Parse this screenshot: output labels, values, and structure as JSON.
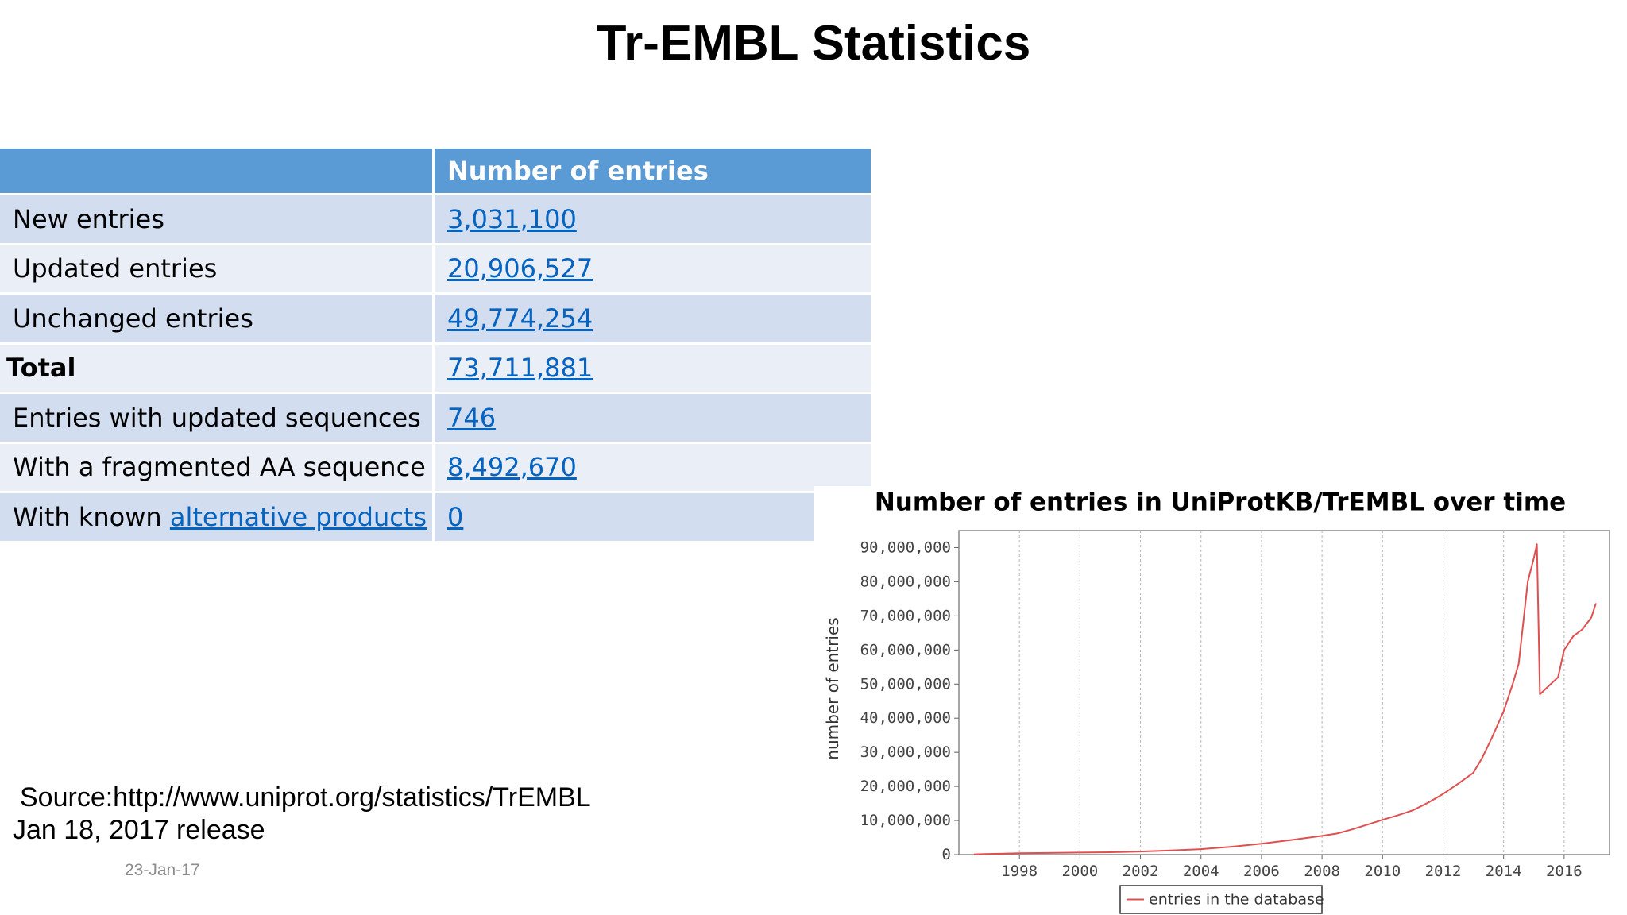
{
  "slide": {
    "title": "Tr-EMBL Statistics",
    "date": "23-Jan-17"
  },
  "table": {
    "header": {
      "col1": "",
      "col2": "Number of entries"
    },
    "rows": [
      {
        "label": "New entries",
        "value": "3,031,100"
      },
      {
        "label": "Updated entries",
        "value": "20,906,527"
      },
      {
        "label": "Unchanged entries",
        "value": "49,774,254"
      },
      {
        "label": "Total",
        "value": "73,711,881"
      },
      {
        "label": "Entries with updated sequences",
        "value": "746"
      },
      {
        "label": "With a fragmented AA sequence",
        "value": "8,492,670"
      },
      {
        "label_prefix": "With known ",
        "label_link": "alternative products",
        "value": "0"
      }
    ]
  },
  "source": {
    "line1": "Source:http://www.uniprot.org/statistics/TrEMBL",
    "line2": "Jan 18, 2017 release"
  },
  "chart_data": {
    "type": "line",
    "title": "Number of entries in UniProtKB/TrEMBL over time",
    "xlabel": "",
    "ylabel": "number of entries",
    "xlim": [
      1996.0,
      2017.5
    ],
    "ylim": [
      0,
      95000000
    ],
    "x_ticks": [
      "1998",
      "2000",
      "2002",
      "2004",
      "2006",
      "2008",
      "2010",
      "2012",
      "2014",
      "2016"
    ],
    "y_ticks": [
      "0",
      "10,000,000",
      "20,000,000",
      "30,000,000",
      "40,000,000",
      "50,000,000",
      "60,000,000",
      "70,000,000",
      "80,000,000",
      "90,000,000"
    ],
    "grid": "vertical-dashed",
    "legend_position": "bottom-center",
    "series": [
      {
        "name": "entries in the database",
        "color": "#e05050",
        "x": [
          1996.5,
          1997.0,
          1997.5,
          1998.0,
          1999.0,
          2000.0,
          2001.0,
          2002.0,
          2003.0,
          2004.0,
          2005.0,
          2006.0,
          2007.0,
          2008.0,
          2008.5,
          2009.0,
          2009.5,
          2010.0,
          2010.5,
          2011.0,
          2011.5,
          2012.0,
          2012.5,
          2013.0,
          2013.3,
          2013.6,
          2014.0,
          2014.3,
          2014.5,
          2014.8,
          2015.0,
          2015.1,
          2015.2,
          2015.5,
          2015.8,
          2016.0,
          2016.3,
          2016.6,
          2016.9,
          2017.05
        ],
        "y": [
          100000,
          200000,
          300000,
          400000,
          500000,
          600000,
          700000,
          900000,
          1200000,
          1600000,
          2300000,
          3200000,
          4300000,
          5500000,
          6200000,
          7400000,
          8800000,
          10200000,
          11500000,
          13000000,
          15200000,
          17800000,
          20800000,
          24000000,
          28500000,
          34000000,
          42000000,
          50000000,
          56000000,
          80000000,
          87000000,
          91000000,
          47000000,
          49500000,
          52000000,
          60000000,
          64000000,
          66000000,
          69500000,
          73700000
        ]
      }
    ]
  }
}
